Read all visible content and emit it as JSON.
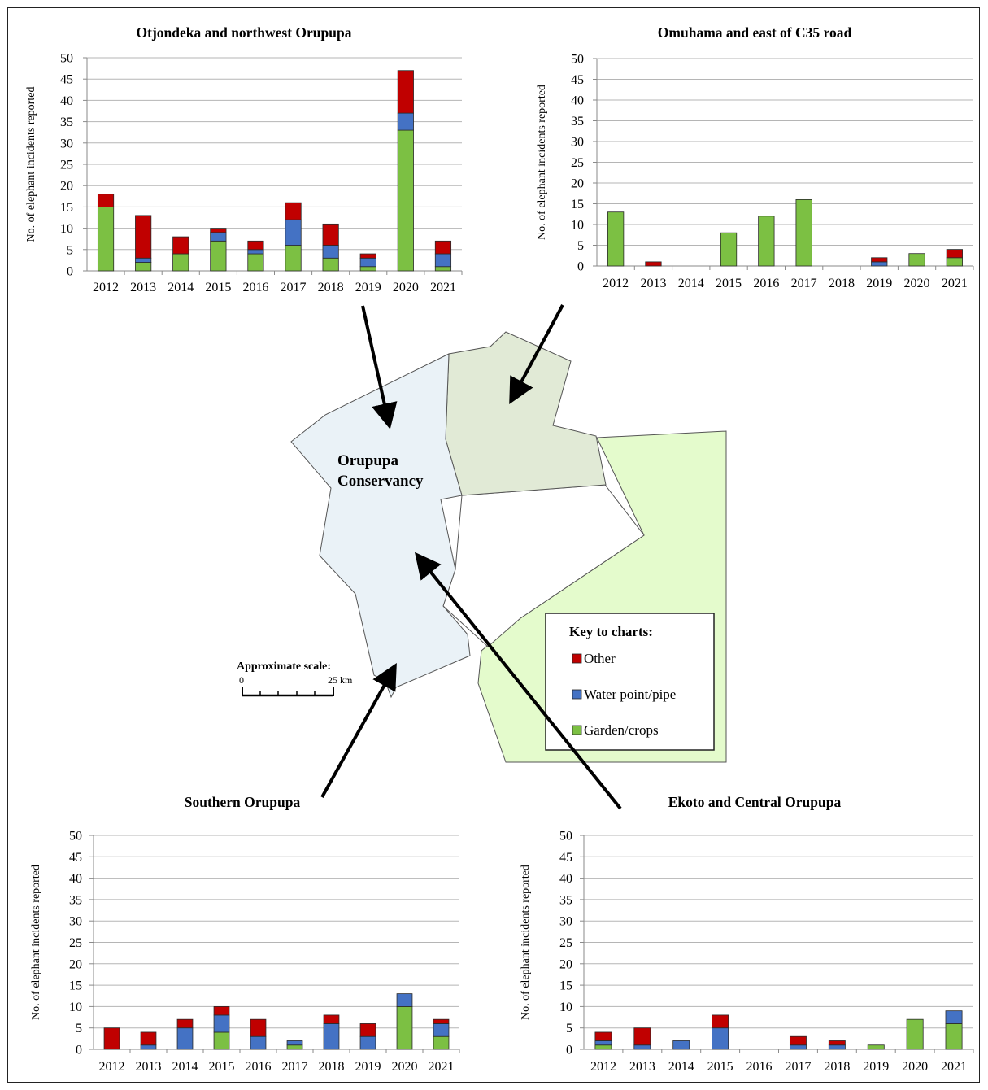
{
  "colors": {
    "other": "#c00000",
    "water": "#4472c4",
    "garden": "#7cc043",
    "nw_region": "#eaf2f7",
    "east_region": "#e1ead6",
    "green_region": "#e4fbcc",
    "border": "#555555"
  },
  "map": {
    "label_line1": "Orupupa",
    "label_line2": "Conservancy",
    "scale_title": "Approximate scale:",
    "scale_start": "0",
    "scale_end": "25 km"
  },
  "legend": {
    "title": "Key to charts:",
    "items": [
      {
        "label": "Other",
        "color": "#c00000"
      },
      {
        "label": "Water point/pipe",
        "color": "#4472c4"
      },
      {
        "label": "Garden/crops",
        "color": "#7cc043"
      }
    ]
  },
  "chart_data": [
    {
      "type": "bar",
      "stacked": true,
      "title": "Otjondeka and northwest Orupupa",
      "ylabel": "No. of elephant incidents reported",
      "xlabel": "",
      "categories": [
        "2012",
        "2013",
        "2014",
        "2015",
        "2016",
        "2017",
        "2018",
        "2019",
        "2020",
        "2021"
      ],
      "ylim": [
        0,
        50
      ],
      "yticks": [
        0,
        5,
        10,
        15,
        20,
        25,
        30,
        35,
        40,
        45,
        50
      ],
      "grid": true,
      "series": [
        {
          "name": "Garden/crops",
          "color": "#7cc043",
          "values": [
            15,
            2,
            4,
            7,
            4,
            6,
            3,
            1,
            33,
            1
          ]
        },
        {
          "name": "Water point/pipe",
          "color": "#4472c4",
          "values": [
            0,
            1,
            0,
            2,
            1,
            6,
            3,
            2,
            4,
            3
          ]
        },
        {
          "name": "Other",
          "color": "#c00000",
          "values": [
            3,
            10,
            4,
            1,
            2,
            4,
            5,
            1,
            10,
            3
          ]
        }
      ]
    },
    {
      "type": "bar",
      "stacked": true,
      "title": "Omuhama and east of C35 road",
      "ylabel": "No. of elephant incidents reported",
      "xlabel": "",
      "categories": [
        "2012",
        "2013",
        "2014",
        "2015",
        "2016",
        "2017",
        "2018",
        "2019",
        "2020",
        "2021"
      ],
      "ylim": [
        0,
        50
      ],
      "yticks": [
        0,
        5,
        10,
        15,
        20,
        25,
        30,
        35,
        40,
        45,
        50
      ],
      "grid": true,
      "series": [
        {
          "name": "Garden/crops",
          "color": "#7cc043",
          "values": [
            13,
            0,
            0,
            8,
            12,
            16,
            0,
            0,
            3,
            2
          ]
        },
        {
          "name": "Water point/pipe",
          "color": "#4472c4",
          "values": [
            0,
            0,
            0,
            0,
            0,
            0,
            0,
            1,
            0,
            0
          ]
        },
        {
          "name": "Other",
          "color": "#c00000",
          "values": [
            0,
            1,
            0,
            0,
            0,
            0,
            0,
            1,
            0,
            2
          ]
        }
      ]
    },
    {
      "type": "bar",
      "stacked": true,
      "title": "Southern Orupupa",
      "ylabel": "No. of elephant incidents reported",
      "xlabel": "",
      "categories": [
        "2012",
        "2013",
        "2014",
        "2015",
        "2016",
        "2017",
        "2018",
        "2019",
        "2020",
        "2021"
      ],
      "ylim": [
        0,
        50
      ],
      "yticks": [
        0,
        5,
        10,
        15,
        20,
        25,
        30,
        35,
        40,
        45,
        50
      ],
      "grid": true,
      "series": [
        {
          "name": "Garden/crops",
          "color": "#7cc043",
          "values": [
            0,
            0,
            0,
            4,
            0,
            1,
            0,
            0,
            10,
            3
          ]
        },
        {
          "name": "Water point/pipe",
          "color": "#4472c4",
          "values": [
            0,
            1,
            5,
            4,
            3,
            1,
            6,
            3,
            3,
            3
          ]
        },
        {
          "name": "Other",
          "color": "#c00000",
          "values": [
            5,
            3,
            2,
            2,
            4,
            0,
            2,
            3,
            0,
            1
          ]
        }
      ]
    },
    {
      "type": "bar",
      "stacked": true,
      "title": "Ekoto and Central Orupupa",
      "ylabel": "No. of elephant incidents reported",
      "xlabel": "",
      "categories": [
        "2012",
        "2013",
        "2014",
        "2015",
        "2016",
        "2017",
        "2018",
        "2019",
        "2020",
        "2021"
      ],
      "ylim": [
        0,
        50
      ],
      "yticks": [
        0,
        5,
        10,
        15,
        20,
        25,
        30,
        35,
        40,
        45,
        50
      ],
      "grid": true,
      "series": [
        {
          "name": "Garden/crops",
          "color": "#7cc043",
          "values": [
            1,
            0,
            0,
            0,
            0,
            0,
            0,
            1,
            7,
            6
          ]
        },
        {
          "name": "Water point/pipe",
          "color": "#4472c4",
          "values": [
            1,
            1,
            2,
            5,
            0,
            1,
            1,
            0,
            0,
            3
          ]
        },
        {
          "name": "Other",
          "color": "#c00000",
          "values": [
            2,
            4,
            0,
            3,
            0,
            2,
            1,
            0,
            0,
            0
          ]
        }
      ]
    }
  ]
}
